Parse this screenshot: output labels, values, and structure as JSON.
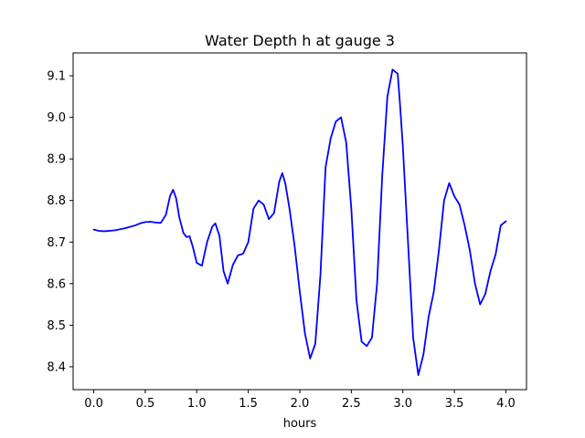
{
  "chart_data": {
    "type": "line",
    "title": "Water Depth h at gauge 3",
    "xlabel": "hours",
    "ylabel": "",
    "xlim": [
      -0.2,
      4.2
    ],
    "ylim": [
      8.345,
      9.155
    ],
    "xticks": [
      {
        "value": 0.0,
        "label": "0.0"
      },
      {
        "value": 0.5,
        "label": "0.5"
      },
      {
        "value": 1.0,
        "label": "1.0"
      },
      {
        "value": 1.5,
        "label": "1.5"
      },
      {
        "value": 2.0,
        "label": "2.0"
      },
      {
        "value": 2.5,
        "label": "2.5"
      },
      {
        "value": 3.0,
        "label": "3.0"
      },
      {
        "value": 3.5,
        "label": "3.5"
      },
      {
        "value": 4.0,
        "label": "4.0"
      }
    ],
    "yticks": [
      {
        "value": 8.4,
        "label": "8.4"
      },
      {
        "value": 8.5,
        "label": "8.5"
      },
      {
        "value": 8.6,
        "label": "8.6"
      },
      {
        "value": 8.7,
        "label": "8.7"
      },
      {
        "value": 8.8,
        "label": "8.8"
      },
      {
        "value": 8.9,
        "label": "8.9"
      },
      {
        "value": 9.0,
        "label": "9.0"
      },
      {
        "value": 9.1,
        "label": "9.1"
      }
    ],
    "grid": false,
    "legend": "none",
    "series": [
      {
        "color": "#0000ff",
        "x": [
          0.0,
          0.05,
          0.1,
          0.2,
          0.3,
          0.4,
          0.45,
          0.5,
          0.55,
          0.6,
          0.65,
          0.7,
          0.74,
          0.77,
          0.8,
          0.83,
          0.87,
          0.9,
          0.93,
          0.96,
          1.0,
          1.05,
          1.1,
          1.15,
          1.18,
          1.22,
          1.26,
          1.3,
          1.35,
          1.4,
          1.45,
          1.5,
          1.55,
          1.6,
          1.65,
          1.7,
          1.75,
          1.8,
          1.83,
          1.86,
          1.9,
          1.95,
          2.0,
          2.05,
          2.1,
          2.15,
          2.2,
          2.25,
          2.3,
          2.35,
          2.4,
          2.45,
          2.5,
          2.55,
          2.6,
          2.65,
          2.7,
          2.75,
          2.8,
          2.85,
          2.9,
          2.95,
          2.97,
          3.0,
          3.05,
          3.1,
          3.15,
          3.2,
          3.25,
          3.3,
          3.35,
          3.4,
          3.45,
          3.5,
          3.55,
          3.6,
          3.65,
          3.7,
          3.75,
          3.8,
          3.85,
          3.9,
          3.95,
          4.0
        ],
        "y": [
          8.73,
          8.727,
          8.726,
          8.728,
          8.733,
          8.74,
          8.745,
          8.748,
          8.749,
          8.747,
          8.746,
          8.765,
          8.81,
          8.826,
          8.805,
          8.76,
          8.722,
          8.712,
          8.714,
          8.69,
          8.65,
          8.643,
          8.7,
          8.737,
          8.745,
          8.715,
          8.63,
          8.6,
          8.645,
          8.668,
          8.672,
          8.7,
          8.78,
          8.8,
          8.79,
          8.755,
          8.77,
          8.845,
          8.866,
          8.84,
          8.78,
          8.69,
          8.58,
          8.48,
          8.42,
          8.455,
          8.62,
          8.88,
          8.95,
          8.99,
          9.0,
          8.94,
          8.78,
          8.56,
          8.46,
          8.45,
          8.47,
          8.6,
          8.86,
          9.05,
          9.115,
          9.105,
          9.04,
          8.93,
          8.7,
          8.47,
          8.38,
          8.43,
          8.52,
          8.58,
          8.68,
          8.8,
          8.842,
          8.81,
          8.79,
          8.74,
          8.68,
          8.6,
          8.55,
          8.575,
          8.63,
          8.67,
          8.74,
          8.75
        ]
      }
    ]
  }
}
